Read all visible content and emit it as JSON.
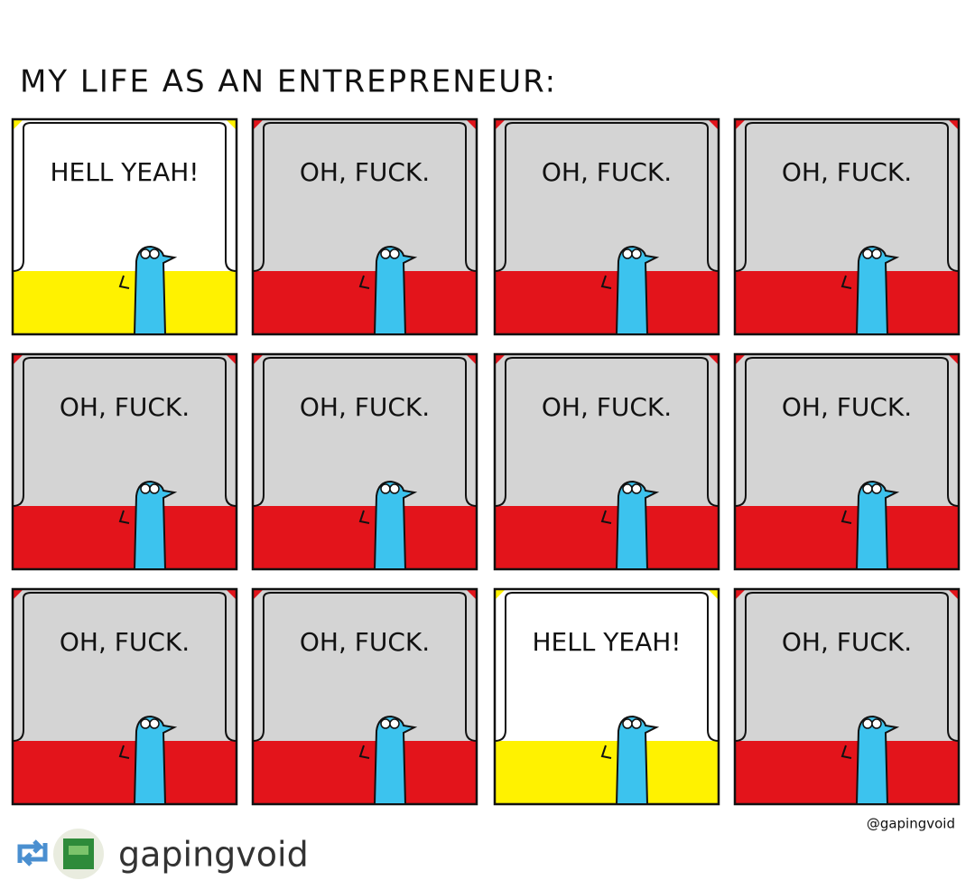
{
  "title": "MY LIFE AS AN ENTREPRENEUR:",
  "panels": [
    {
      "caption": "HELL YEAH!",
      "wall": "#ffffff",
      "floor": "#fff200"
    },
    {
      "caption": "OH, FUCK.",
      "wall": "#d4d4d4",
      "floor": "#e3141b"
    },
    {
      "caption": "OH, FUCK.",
      "wall": "#d4d4d4",
      "floor": "#e3141b"
    },
    {
      "caption": "OH, FUCK.",
      "wall": "#d4d4d4",
      "floor": "#e3141b"
    },
    {
      "caption": "OH, FUCK.",
      "wall": "#d4d4d4",
      "floor": "#e3141b"
    },
    {
      "caption": "OH, FUCK.",
      "wall": "#d4d4d4",
      "floor": "#e3141b"
    },
    {
      "caption": "OH, FUCK.",
      "wall": "#d4d4d4",
      "floor": "#e3141b"
    },
    {
      "caption": "OH, FUCK.",
      "wall": "#d4d4d4",
      "floor": "#e3141b"
    },
    {
      "caption": "OH, FUCK.",
      "wall": "#d4d4d4",
      "floor": "#e3141b"
    },
    {
      "caption": "OH, FUCK.",
      "wall": "#d4d4d4",
      "floor": "#e3141b"
    },
    {
      "caption": "HELL YEAH!",
      "wall": "#ffffff",
      "floor": "#fff200"
    },
    {
      "caption": "OH, FUCK.",
      "wall": "#d4d4d4",
      "floor": "#e3141b"
    }
  ],
  "signature": "@gapingvoid",
  "repost": {
    "username": "gapingvoid"
  }
}
